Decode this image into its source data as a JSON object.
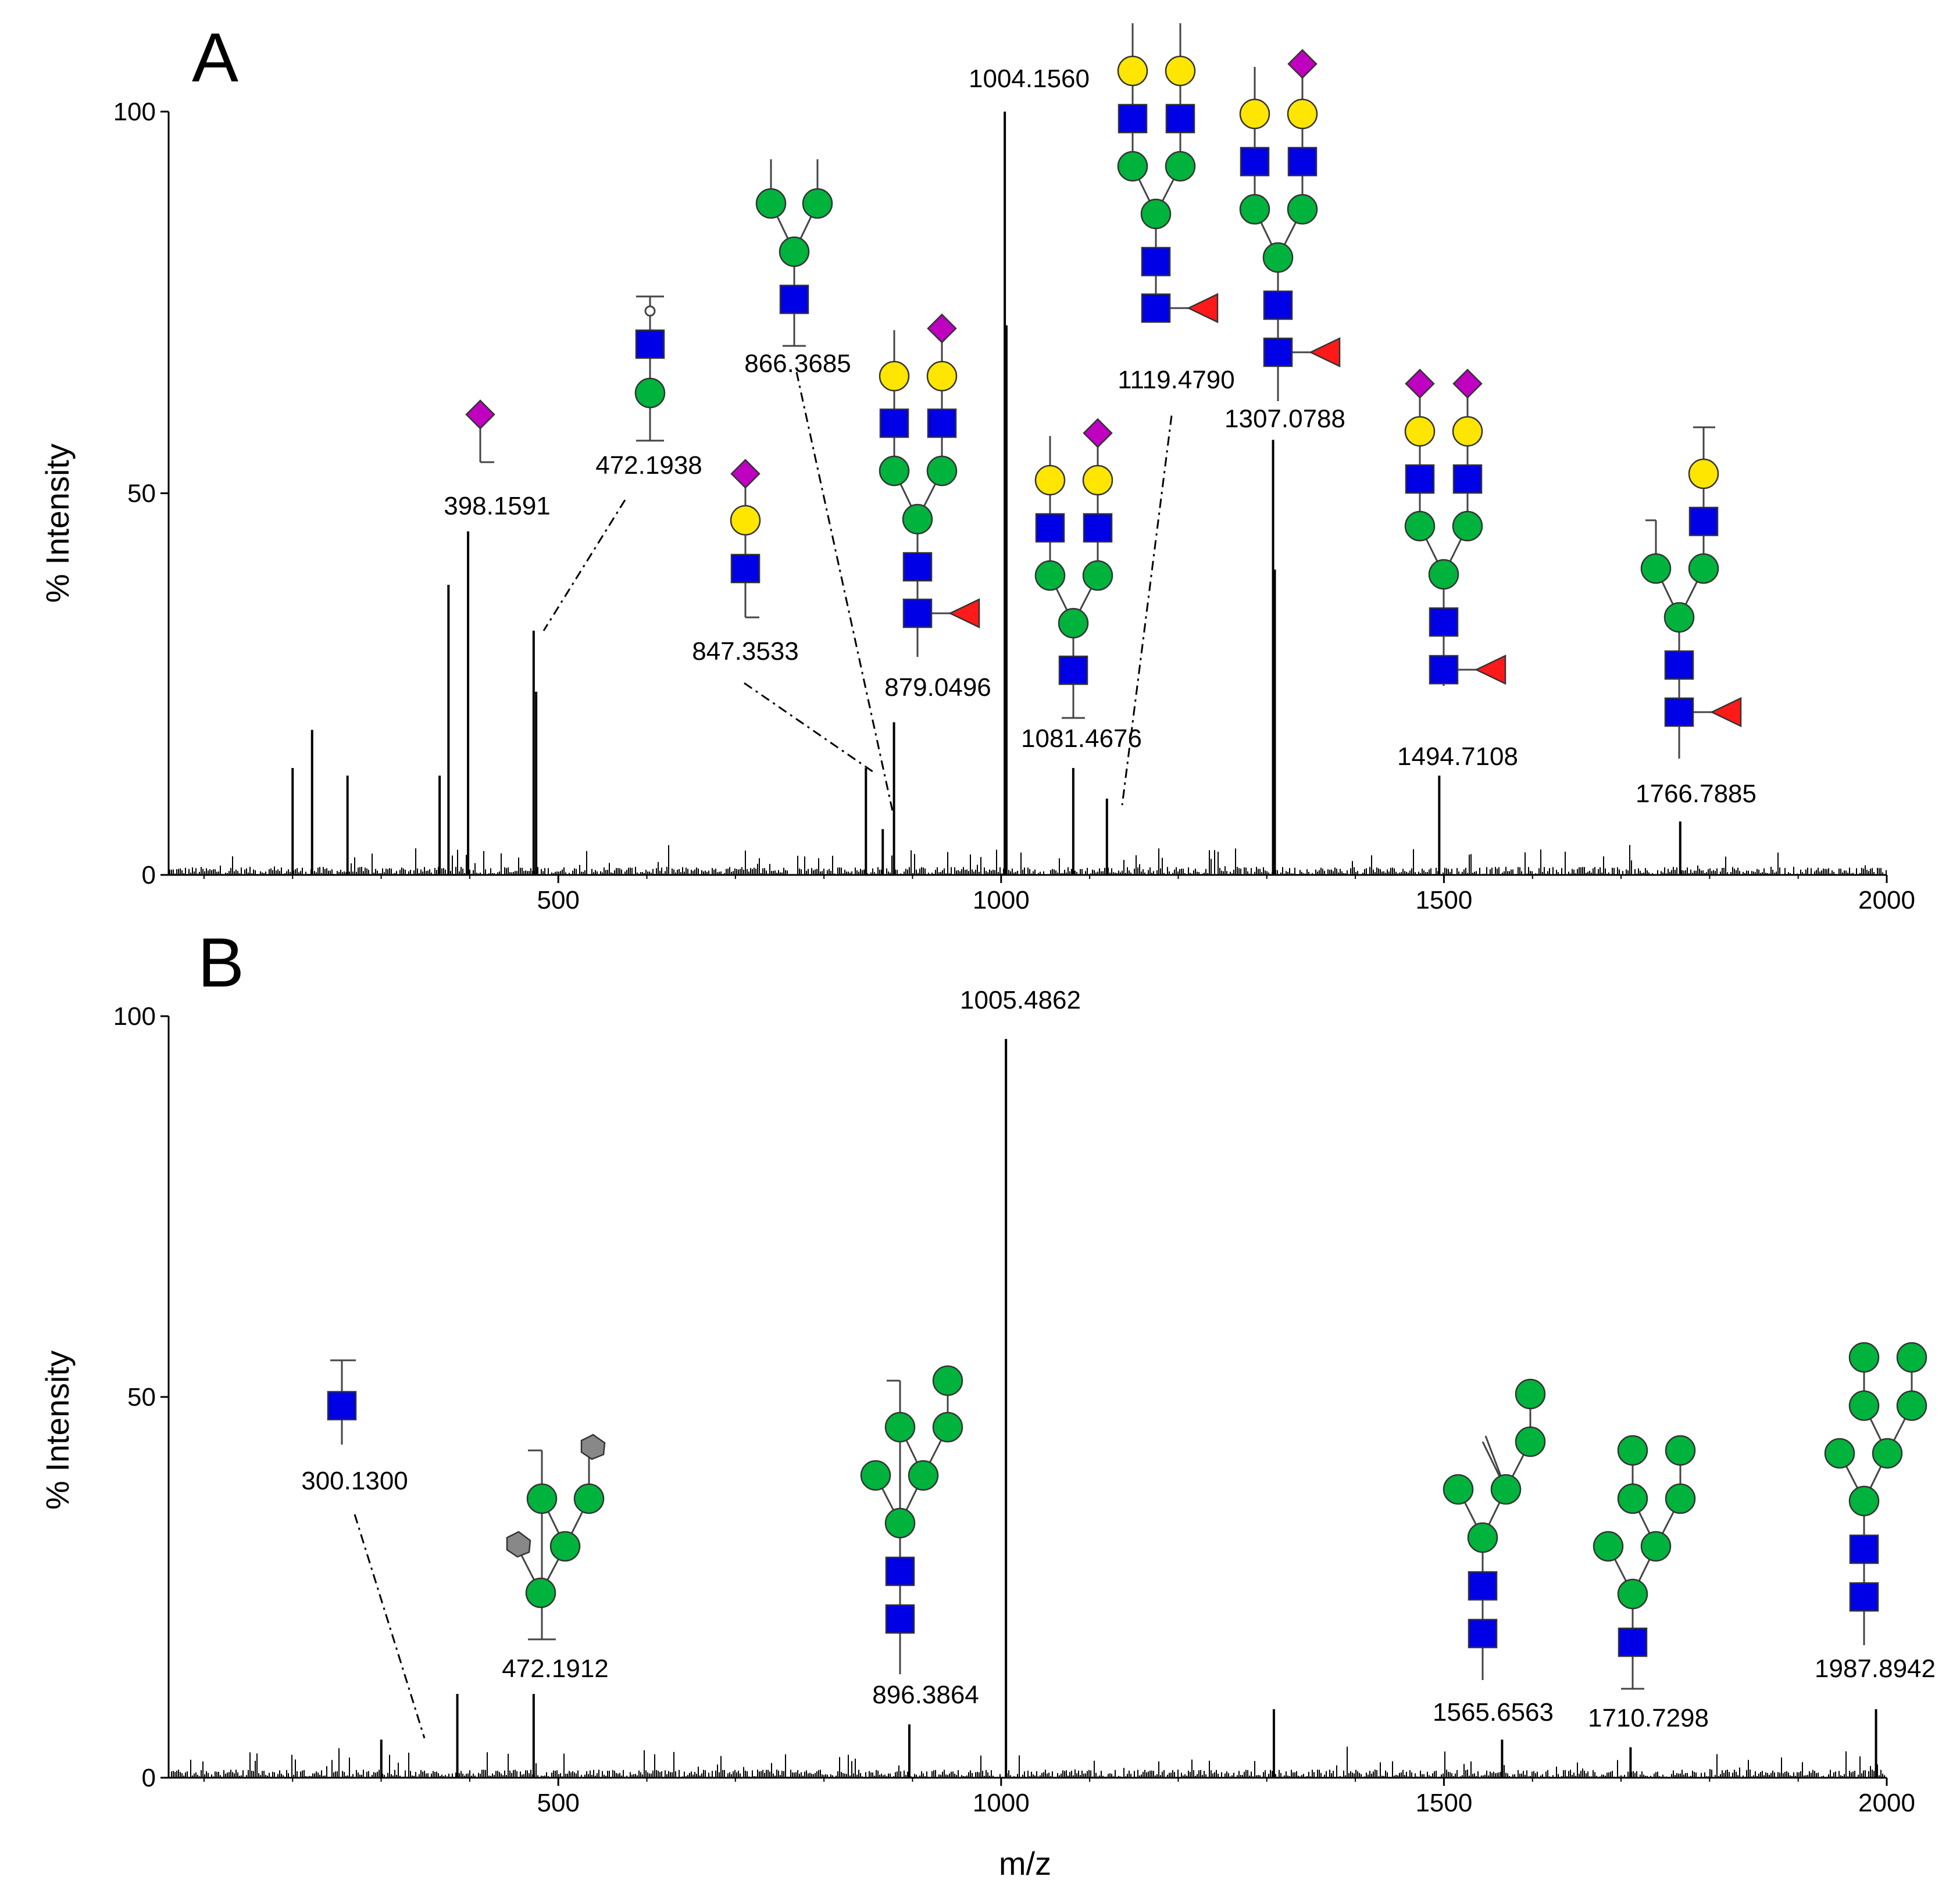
{
  "chart_data": [
    {
      "type": "bar",
      "panel": "A",
      "xlabel": "",
      "ylabel": "% Intensity",
      "xlim": [
        60,
        2000
      ],
      "ylim": [
        0,
        100
      ],
      "xticks": [
        500,
        1000,
        1500,
        2000
      ],
      "yticks": [
        0,
        50,
        100
      ],
      "peaks": [
        {
          "x": 398.1591,
          "y": 45,
          "label": "398.1591"
        },
        {
          "x": 376,
          "y": 38,
          "label": ""
        },
        {
          "x": 472.1938,
          "y": 32,
          "label": "472.1938"
        },
        {
          "x": 475,
          "y": 24,
          "label": ""
        },
        {
          "x": 222,
          "y": 19,
          "label": ""
        },
        {
          "x": 200,
          "y": 14,
          "label": ""
        },
        {
          "x": 262,
          "y": 13,
          "label": ""
        },
        {
          "x": 366,
          "y": 13,
          "label": ""
        },
        {
          "x": 847.3533,
          "y": 14,
          "label": "847.3533"
        },
        {
          "x": 866.3685,
          "y": 6,
          "label": "866.3685"
        },
        {
          "x": 879.0496,
          "y": 20,
          "label": "879.0496"
        },
        {
          "x": 1004.156,
          "y": 100,
          "label": "1004.1560"
        },
        {
          "x": 1006,
          "y": 72,
          "label": ""
        },
        {
          "x": 1081.4676,
          "y": 14,
          "label": "1081.4676"
        },
        {
          "x": 1119.479,
          "y": 10,
          "label": "1119.4790"
        },
        {
          "x": 1307.0788,
          "y": 57,
          "label": "1307.0788"
        },
        {
          "x": 1309,
          "y": 40,
          "label": ""
        },
        {
          "x": 1494.7108,
          "y": 13,
          "label": "1494.7108"
        },
        {
          "x": 1766.7885,
          "y": 7,
          "label": "1766.7885"
        }
      ]
    },
    {
      "type": "bar",
      "panel": "B",
      "xlabel": "m/z",
      "ylabel": "% Intensity",
      "xlim": [
        60,
        2000
      ],
      "ylim": [
        0,
        100
      ],
      "xticks": [
        500,
        1000,
        1500,
        2000
      ],
      "yticks": [
        0,
        50,
        100
      ],
      "peaks": [
        {
          "x": 300.13,
          "y": 5,
          "label": "300.1300"
        },
        {
          "x": 386,
          "y": 11,
          "label": ""
        },
        {
          "x": 472.1912,
          "y": 11,
          "label": "472.1912"
        },
        {
          "x": 896.3864,
          "y": 7,
          "label": "896.3864"
        },
        {
          "x": 1005.4862,
          "y": 97,
          "label": "1005.4862"
        },
        {
          "x": 1308,
          "y": 9,
          "label": ""
        },
        {
          "x": 1565.6563,
          "y": 5,
          "label": "1565.6563"
        },
        {
          "x": 1710.7298,
          "y": 4,
          "label": "1710.7298"
        },
        {
          "x": 1987.8942,
          "y": 9,
          "label": "1987.8942"
        }
      ]
    }
  ]
}
